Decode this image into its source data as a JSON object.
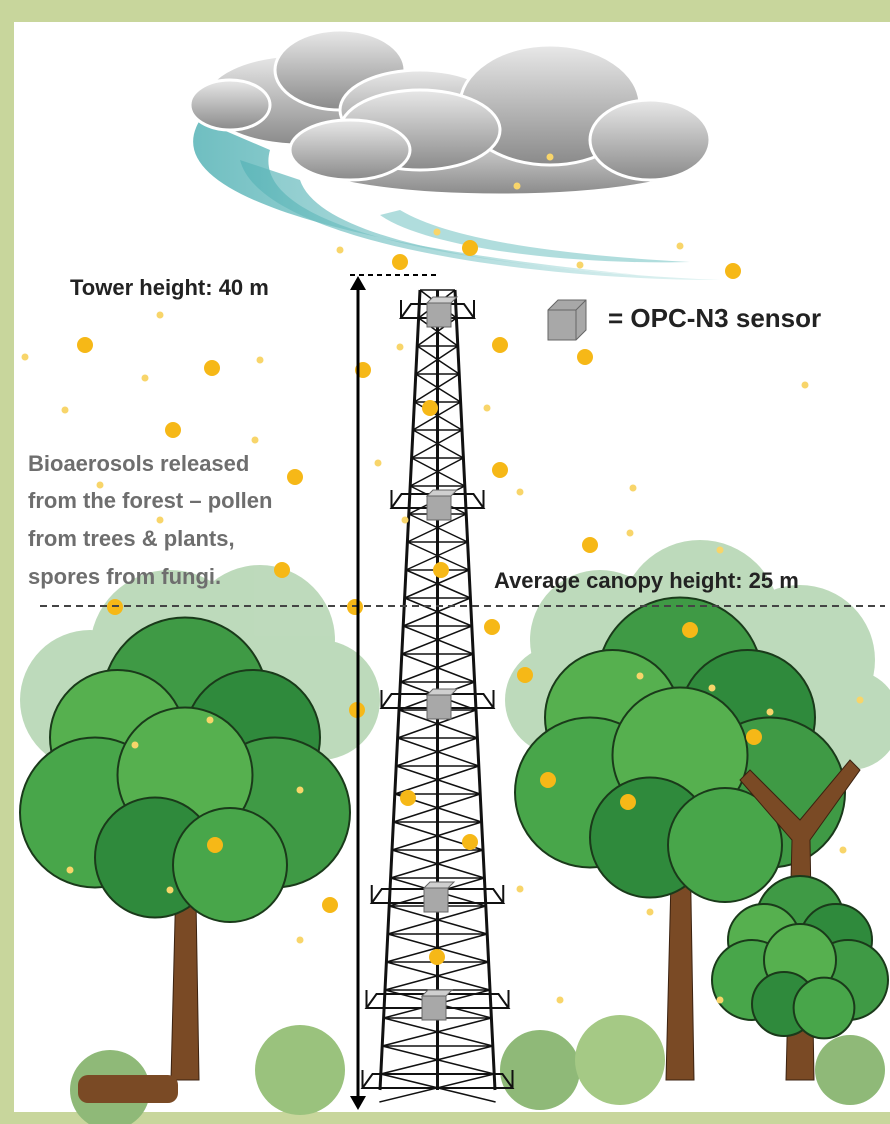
{
  "labels": {
    "tower_height": "Tower height: 40 m",
    "sensor_legend": "= OPC-N3 sensor",
    "canopy_height": "Average canopy height: 25 m",
    "bioaerosols": [
      "Bioaerosols released",
      "from the forest – pollen",
      "from trees & plants,",
      "spores from fungi."
    ]
  }
}
